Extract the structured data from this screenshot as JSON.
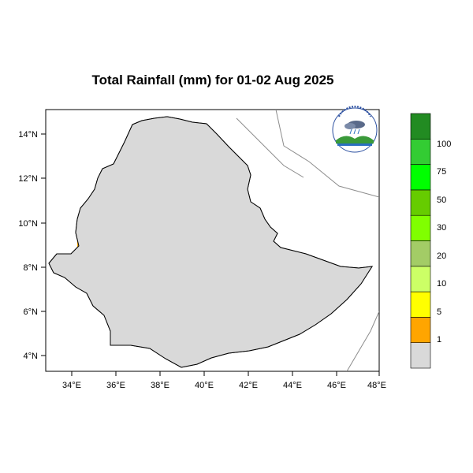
{
  "title": "Total Rainfall (mm) for 01-02 Aug 2025",
  "x_ticks": [
    "34°E",
    "36°E",
    "38°E",
    "40°E",
    "42°E",
    "44°E",
    "46°E",
    "48°E"
  ],
  "y_ticks": [
    "14°N",
    "12°N",
    "10°N",
    "8°N",
    "6°N",
    "4°N"
  ],
  "legend": {
    "labels": [
      "1",
      "5",
      "10",
      "20",
      "30",
      "50",
      "75",
      "100"
    ],
    "colors": [
      "#d9d9d9",
      "#ffa500",
      "#ffff00",
      "#ccff66",
      "#a3cc66",
      "#80ff00",
      "#66cc00",
      "#00ff00",
      "#33cc33",
      "#228b22"
    ]
  },
  "map": {
    "extent": {
      "lon": [
        33,
        48
      ],
      "lat": [
        3.2,
        15
      ]
    },
    "land_color": "#d9d9d9",
    "boundary_color": "#000000"
  },
  "logo": {
    "name": "agency-logo"
  }
}
